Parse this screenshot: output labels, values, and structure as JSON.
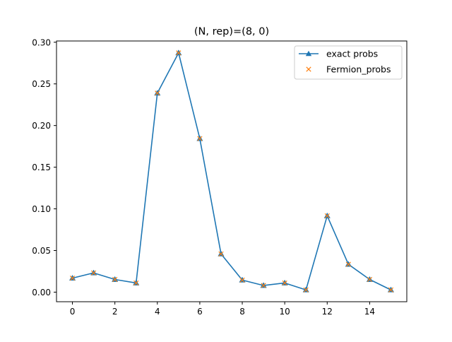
{
  "chart_data": {
    "type": "line",
    "title": "(N, rep)=(8, 0)",
    "xlabel": "",
    "ylabel": "",
    "xlim": [
      -0.75,
      15.75
    ],
    "ylim": [
      -0.0115,
      0.3015
    ],
    "xticks": [
      0,
      2,
      4,
      6,
      8,
      10,
      12,
      14
    ],
    "yticks": [
      0.0,
      0.05,
      0.1,
      0.15,
      0.2,
      0.25,
      0.3
    ],
    "ytick_labels": [
      "0.00",
      "0.05",
      "0.10",
      "0.15",
      "0.20",
      "0.25",
      "0.30"
    ],
    "grid": false,
    "legend_position": "top-right",
    "x": [
      0,
      1,
      2,
      3,
      4,
      5,
      6,
      7,
      8,
      9,
      10,
      11,
      12,
      13,
      14,
      15
    ],
    "series": [
      {
        "name": "exact probs",
        "style": "line-triangle-marker",
        "color": "#1f77b4",
        "values": [
          0.0168,
          0.0231,
          0.0152,
          0.011,
          0.2389,
          0.2872,
          0.1843,
          0.0459,
          0.0145,
          0.008,
          0.011,
          0.0027,
          0.0916,
          0.0334,
          0.0152,
          0.0027
        ]
      },
      {
        "name": "Fermion_probs",
        "style": "x-marker",
        "color": "#ff7f0e",
        "values": [
          0.0168,
          0.0231,
          0.0152,
          0.011,
          0.2389,
          0.2872,
          0.1843,
          0.0459,
          0.0145,
          0.008,
          0.011,
          0.0027,
          0.0916,
          0.0334,
          0.0152,
          0.0027
        ]
      }
    ]
  }
}
